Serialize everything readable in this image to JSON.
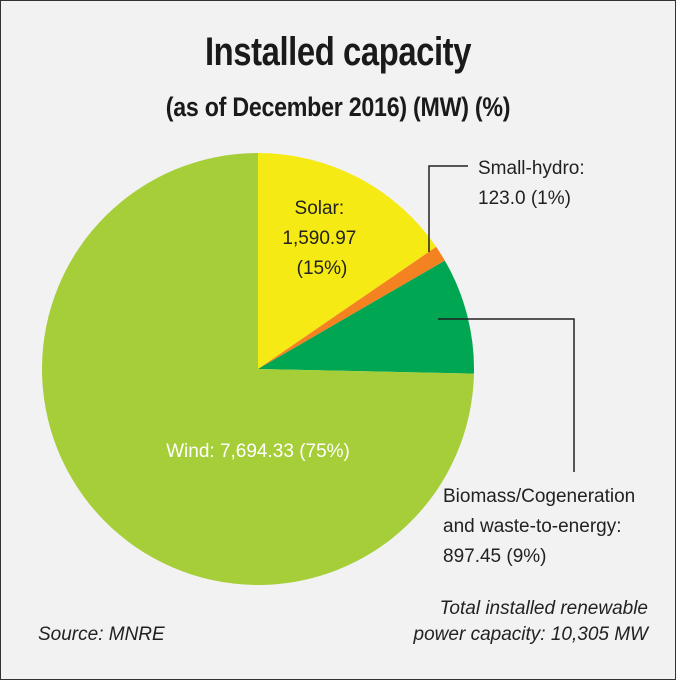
{
  "chart_data": {
    "type": "pie",
    "title": "Installed capacity",
    "subtitle": "(as of December 2016) (MW) (%)",
    "unit": "MW",
    "slices": [
      {
        "name": "Solar",
        "value": 1590.97,
        "percent": 15,
        "color": "#f5ea14",
        "label_lines": [
          "Solar:",
          "1,590.97",
          "(15%)"
        ]
      },
      {
        "name": "Small-hydro",
        "value": 123.0,
        "percent": 1,
        "color": "#f58220",
        "label_lines": [
          "Small-hydro:",
          "123.0 (1%)"
        ]
      },
      {
        "name": "Biomass/Cogeneration and waste-to-energy",
        "value": 897.45,
        "percent": 9,
        "color": "#00a651",
        "label_lines": [
          "Biomass/Cogeneration",
          "and waste-to-energy:",
          "897.45 (9%)"
        ]
      },
      {
        "name": "Wind",
        "value": 7694.33,
        "percent": 75,
        "color": "#a6ce39",
        "label_lines": [
          "Wind: 7,694.33 (75%)"
        ]
      }
    ],
    "start_angle_deg": 0,
    "direction": "clockwise"
  },
  "footer": {
    "source": "Source: MNRE",
    "total_lines": [
      "Total installed renewable",
      "power capacity: 10,305 MW"
    ]
  }
}
